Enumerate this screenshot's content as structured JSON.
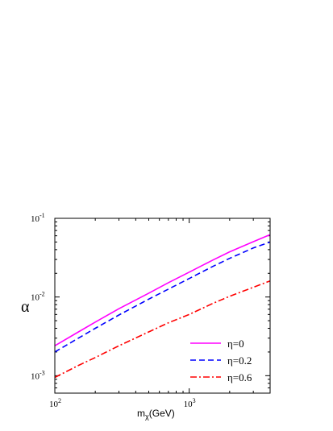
{
  "chart_data": {
    "type": "line",
    "title": "",
    "xlabel": "m",
    "xlabel_sub": "χ",
    "xlabel_unit": "(GeV)",
    "ylabel": "α",
    "x_scale": "log",
    "y_scale": "log",
    "xlim": [
      100,
      4000
    ],
    "ylim": [
      0.0006,
      0.1
    ],
    "x_ticks": [
      {
        "value": 100,
        "base": "10",
        "exp": "2"
      },
      {
        "value": 1000,
        "base": "10",
        "exp": "3"
      }
    ],
    "y_ticks": [
      {
        "value": 0.001,
        "base": "10",
        "exp": "-3"
      },
      {
        "value": 0.01,
        "base": "10",
        "exp": "-2"
      },
      {
        "value": 0.1,
        "base": "10",
        "exp": "-1"
      }
    ],
    "grid": false,
    "legend_position": "bottom-right",
    "series": [
      {
        "name": "η=0",
        "color": "#ff00ff",
        "dash": "solid",
        "x": [
          100,
          150,
          200,
          300,
          500,
          700,
          1000,
          1500,
          2000,
          3000,
          4000
        ],
        "y": [
          0.0024,
          0.0036,
          0.0048,
          0.0071,
          0.0112,
          0.0152,
          0.0207,
          0.0295,
          0.0375,
          0.0505,
          0.062
        ]
      },
      {
        "name": "η=0.2",
        "color": "#0000ff",
        "dash": "dashed",
        "x": [
          100,
          150,
          200,
          300,
          500,
          700,
          1000,
          1500,
          2000,
          3000,
          4000
        ],
        "y": [
          0.002,
          0.003,
          0.004,
          0.0059,
          0.0094,
          0.0126,
          0.0172,
          0.0245,
          0.031,
          0.042,
          0.05
        ]
      },
      {
        "name": "η=0.6",
        "color": "#ff0000",
        "dash": "dashdot",
        "x": [
          100,
          150,
          200,
          300,
          500,
          700,
          1000,
          1500,
          2000,
          3000,
          4000
        ],
        "y": [
          0.00095,
          0.00135,
          0.0017,
          0.0024,
          0.0036,
          0.0047,
          0.006,
          0.0083,
          0.0102,
          0.0133,
          0.016
        ]
      }
    ]
  }
}
